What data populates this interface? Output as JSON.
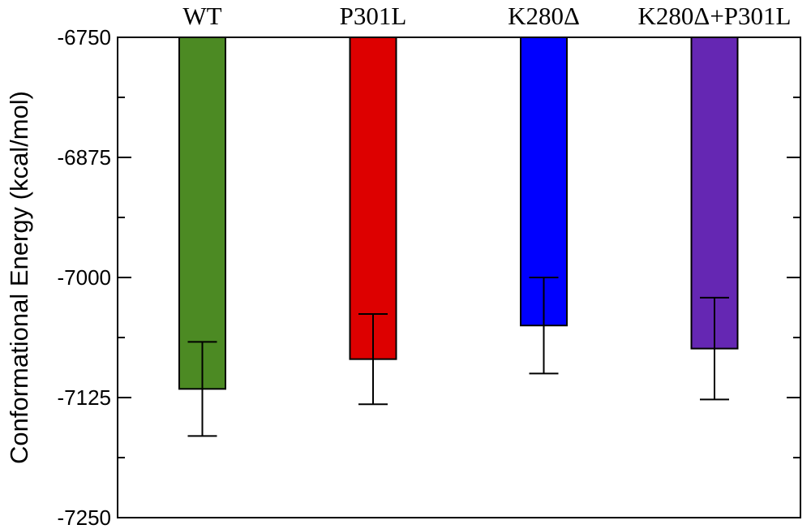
{
  "chart_data": {
    "type": "bar",
    "title": "",
    "xlabel": "",
    "ylabel": "Conformational Energy (kcal/mol)",
    "categories": [
      "WT",
      "P301L",
      "K280Δ",
      "K280Δ+P301L"
    ],
    "values": [
      -7116,
      -7085,
      -7050,
      -7074
    ],
    "error": [
      49,
      47,
      50,
      53
    ],
    "colors": [
      "#4c8a23",
      "#dd0000",
      "#0000ff",
      "#6527b3"
    ],
    "ylim": [
      -7250,
      -6750
    ],
    "yticks_major": [
      -6750,
      -6875,
      -7000,
      -7125,
      -7250
    ],
    "yticks_minor": [
      -6812.5,
      -6937.5,
      -7062.5,
      -7187.5
    ],
    "grid": false,
    "legend": null,
    "bars_hang_from_top": true
  }
}
